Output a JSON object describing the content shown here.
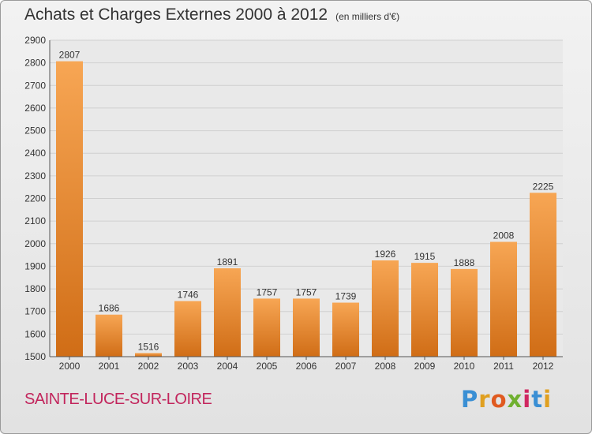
{
  "title": "Achats et Charges Externes 2000 à 2012",
  "subtitle": "(en milliers d'€)",
  "location": "SAINTE-LUCE-SUR-LOIRE",
  "logo": {
    "text": "Proxiti",
    "letter_colors": [
      "#3a8fd4",
      "#e0a020",
      "#e05a20",
      "#70b030",
      "#d02860",
      "#3a8fd4",
      "#e0a020"
    ]
  },
  "chart_data": {
    "type": "bar",
    "categories": [
      "2000",
      "2001",
      "2002",
      "2003",
      "2004",
      "2005",
      "2006",
      "2007",
      "2008",
      "2009",
      "2010",
      "2011",
      "2012"
    ],
    "values": [
      2807,
      1686,
      1516,
      1746,
      1891,
      1757,
      1757,
      1739,
      1926,
      1915,
      1888,
      2008,
      2225
    ],
    "ylim": [
      1500,
      2900
    ],
    "yticks": [
      1500,
      1600,
      1700,
      1800,
      1900,
      2000,
      2100,
      2200,
      2300,
      2400,
      2500,
      2600,
      2700,
      2800,
      2900
    ],
    "grid": true,
    "bar_color_top": "#f7a654",
    "bar_color_bottom": "#d06d16"
  }
}
